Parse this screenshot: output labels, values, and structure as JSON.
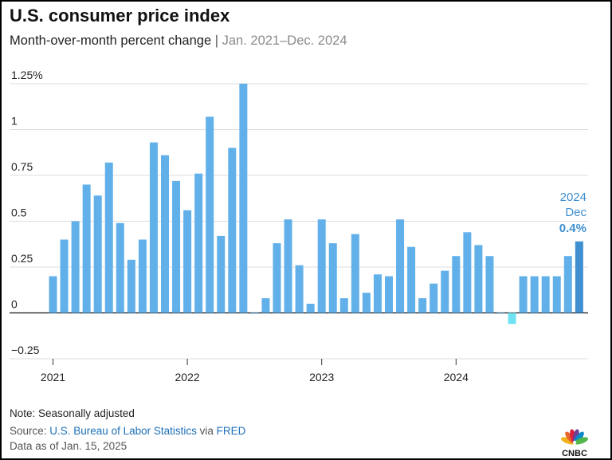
{
  "header": {
    "title": "U.S. consumer price index",
    "subtitle": "Month-over-month percent change",
    "separator": "|",
    "date_range": "Jan. 2021–Dec. 2024"
  },
  "colors": {
    "bar": "#62b0ea",
    "bar_negative": "#6fe3f2",
    "bar_highlight": "#3f8fd1",
    "annotation": "#3f8fd1",
    "grid": "#dddddd",
    "link": "#1d6fb8"
  },
  "chart_data": {
    "type": "bar",
    "x_tick_labels": [
      "2021",
      "2022",
      "2023",
      "2024"
    ],
    "y_tick_labels": [
      "1.25%",
      "1",
      "0.75",
      "0.5",
      "0.25",
      "0",
      "−0.25"
    ],
    "y_ticks": [
      1.25,
      1,
      0.75,
      0.5,
      0.25,
      0,
      -0.25
    ],
    "ylim": [
      -0.25,
      1.25
    ],
    "grid": true,
    "categories": [
      "Jan 2021",
      "Feb 2021",
      "Mar 2021",
      "Apr 2021",
      "May 2021",
      "Jun 2021",
      "Jul 2021",
      "Aug 2021",
      "Sep 2021",
      "Oct 2021",
      "Nov 2021",
      "Dec 2021",
      "Jan 2022",
      "Feb 2022",
      "Mar 2022",
      "Apr 2022",
      "May 2022",
      "Jun 2022",
      "Jul 2022",
      "Aug 2022",
      "Sep 2022",
      "Oct 2022",
      "Nov 2022",
      "Dec 2022",
      "Jan 2023",
      "Feb 2023",
      "Mar 2023",
      "Apr 2023",
      "May 2023",
      "Jun 2023",
      "Jul 2023",
      "Aug 2023",
      "Sep 2023",
      "Oct 2023",
      "Nov 2023",
      "Dec 2023",
      "Jan 2024",
      "Feb 2024",
      "Mar 2024",
      "Apr 2024",
      "May 2024",
      "Jun 2024",
      "Jul 2024",
      "Aug 2024",
      "Sep 2024",
      "Oct 2024",
      "Nov 2024",
      "Dec 2024"
    ],
    "values": [
      0.2,
      0.4,
      0.5,
      0.7,
      0.64,
      0.82,
      0.49,
      0.29,
      0.4,
      0.93,
      0.86,
      0.72,
      0.56,
      0.76,
      1.07,
      0.42,
      0.9,
      1.25,
      0.0,
      0.08,
      0.38,
      0.51,
      0.26,
      0.05,
      0.51,
      0.38,
      0.08,
      0.43,
      0.11,
      0.21,
      0.2,
      0.51,
      0.36,
      0.08,
      0.16,
      0.23,
      0.31,
      0.44,
      0.37,
      0.31,
      0.0,
      -0.06,
      0.2,
      0.2,
      0.2,
      0.2,
      0.31,
      0.39
    ],
    "annotation": {
      "year": "2024",
      "month": "Dec",
      "value_label": "0.4%"
    }
  },
  "footer": {
    "note": "Note: Seasonally adjusted",
    "source_prefix": "Source: ",
    "source_name": "U.S. Bureau of Labor Statistics",
    "source_via": " via ",
    "source_fred": "FRED",
    "as_of": "Data as of Jan. 15, 2025"
  },
  "logo": {
    "text": "CNBC",
    "icon": "peacock-icon",
    "colors": [
      "#f2b21d",
      "#e8652b",
      "#d8203f",
      "#6c3e98",
      "#0a89c9",
      "#53b649"
    ]
  }
}
